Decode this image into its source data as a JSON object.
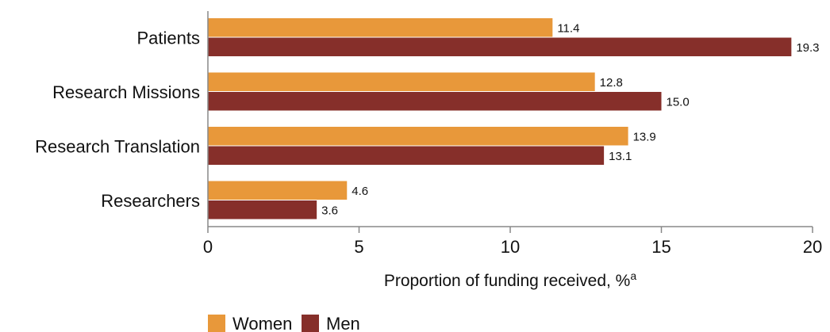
{
  "chart_data": {
    "type": "bar",
    "orientation": "horizontal",
    "categories": [
      "Patients",
      "Research Missions",
      "Research Translation",
      "Researchers"
    ],
    "series": [
      {
        "name": "Women",
        "values": [
          11.4,
          12.8,
          13.9,
          4.6
        ],
        "labels": [
          "11.4",
          "12.8",
          "13.9",
          "4.6"
        ],
        "color": "#E8983A"
      },
      {
        "name": "Men",
        "values": [
          19.3,
          15.0,
          13.1,
          3.6
        ],
        "labels": [
          "19.3",
          "15.0",
          "13.1",
          "3.6"
        ],
        "color": "#862F2A"
      }
    ],
    "xlabel": "Proportion of funding received, %",
    "xlabel_superscript": "a",
    "xlim": [
      0,
      20
    ],
    "xticks": [
      0,
      5,
      10,
      15,
      20
    ],
    "xtick_labels": [
      "0",
      "5",
      "10",
      "15",
      "20"
    ],
    "grid": false,
    "legend_position": "bottom-left"
  }
}
